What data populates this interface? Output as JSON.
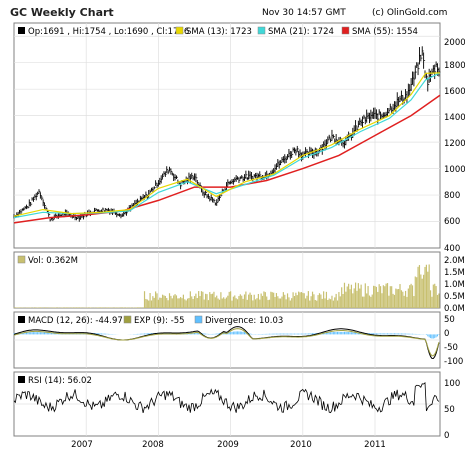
{
  "header": {
    "title": "GC Weekly Chart",
    "timestamp": "Nov 30 14:57 GMT",
    "copyright": "(c) OlinGold.com"
  },
  "colors": {
    "price_bars": "#000000",
    "sma13": "#e8d800",
    "sma21": "#40d8d8",
    "sma55": "#e02020",
    "volume": "#c8c070",
    "macd_line": "#000000",
    "exp_line": "#a0a040",
    "divergence": "#60c0ff",
    "rsi_line": "#000000",
    "grid": "#e0e0e0",
    "panel_border": "#808080"
  },
  "legends": {
    "price": {
      "ohlc": "Op:1691 , Hi:1754 , Lo:1690 , Cl:1746",
      "sma13": "SMA (13): 1723",
      "sma21": "SMA (21): 1724",
      "sma55": "SMA (55): 1554"
    },
    "volume": {
      "vol": "Vol: 0.362M"
    },
    "macd": {
      "macd": "MACD (12, 26): -44.97",
      "exp": "EXP (9): -55",
      "divergence": "Divergence: 10.03"
    },
    "rsi": {
      "rsi": "RSI (14): 56.02"
    }
  },
  "chart_data": [
    {
      "type": "line",
      "panel": "price",
      "y_ticks": [
        "400",
        "600",
        "800",
        "1000",
        "1200",
        "1400",
        "1600",
        "1800",
        "2000"
      ],
      "ylim": [
        400,
        2100
      ],
      "x_ticks": [
        "2007",
        "2008",
        "2009",
        "2010",
        "2011"
      ],
      "price_path": [
        [
          2006.0,
          640
        ],
        [
          2006.2,
          720
        ],
        [
          2006.35,
          830
        ],
        [
          2006.5,
          620
        ],
        [
          2006.7,
          660
        ],
        [
          2006.9,
          630
        ],
        [
          2007.1,
          680
        ],
        [
          2007.3,
          690
        ],
        [
          2007.5,
          650
        ],
        [
          2007.7,
          740
        ],
        [
          2007.85,
          800
        ],
        [
          2008.0,
          900
        ],
        [
          2008.15,
          1000
        ],
        [
          2008.3,
          880
        ],
        [
          2008.5,
          950
        ],
        [
          2008.6,
          830
        ],
        [
          2008.8,
          740
        ],
        [
          2008.95,
          880
        ],
        [
          2009.1,
          930
        ],
        [
          2009.3,
          940
        ],
        [
          2009.5,
          950
        ],
        [
          2009.7,
          1050
        ],
        [
          2009.9,
          1150
        ],
        [
          2010.0,
          1100
        ],
        [
          2010.2,
          1130
        ],
        [
          2010.4,
          1240
        ],
        [
          2010.6,
          1200
        ],
        [
          2010.8,
          1350
        ],
        [
          2010.95,
          1400
        ],
        [
          2011.1,
          1400
        ],
        [
          2011.3,
          1500
        ],
        [
          2011.45,
          1560
        ],
        [
          2011.55,
          1700
        ],
        [
          2011.65,
          1880
        ],
        [
          2011.72,
          1650
        ],
        [
          2011.85,
          1780
        ],
        [
          2011.9,
          1746
        ]
      ],
      "sma13": [
        [
          2006.0,
          640
        ],
        [
          2006.4,
          690
        ],
        [
          2006.8,
          660
        ],
        [
          2007.2,
          670
        ],
        [
          2007.6,
          690
        ],
        [
          2008.0,
          850
        ],
        [
          2008.4,
          920
        ],
        [
          2008.8,
          790
        ],
        [
          2009.2,
          900
        ],
        [
          2009.6,
          960
        ],
        [
          2010.0,
          1100
        ],
        [
          2010.4,
          1180
        ],
        [
          2010.8,
          1300
        ],
        [
          2011.2,
          1400
        ],
        [
          2011.5,
          1560
        ],
        [
          2011.7,
          1720
        ],
        [
          2011.9,
          1723
        ]
      ],
      "sma21": [
        [
          2006.0,
          630
        ],
        [
          2006.4,
          670
        ],
        [
          2006.8,
          660
        ],
        [
          2007.2,
          665
        ],
        [
          2007.6,
          680
        ],
        [
          2008.0,
          820
        ],
        [
          2008.4,
          900
        ],
        [
          2008.8,
          810
        ],
        [
          2009.2,
          880
        ],
        [
          2009.6,
          950
        ],
        [
          2010.0,
          1080
        ],
        [
          2010.4,
          1160
        ],
        [
          2010.8,
          1280
        ],
        [
          2011.2,
          1380
        ],
        [
          2011.5,
          1520
        ],
        [
          2011.7,
          1670
        ],
        [
          2011.9,
          1724
        ]
      ],
      "sma55": [
        [
          2006.0,
          590
        ],
        [
          2006.5,
          630
        ],
        [
          2007.0,
          650
        ],
        [
          2007.5,
          680
        ],
        [
          2008.0,
          760
        ],
        [
          2008.5,
          860
        ],
        [
          2009.0,
          860
        ],
        [
          2009.5,
          910
        ],
        [
          2010.0,
          1000
        ],
        [
          2010.5,
          1100
        ],
        [
          2011.0,
          1250
        ],
        [
          2011.5,
          1400
        ],
        [
          2011.9,
          1554
        ]
      ]
    },
    {
      "type": "bar",
      "panel": "volume",
      "y_ticks": [
        "0.0M",
        "0.5M",
        "1.0M",
        "1.5M",
        "2.0M"
      ],
      "ylim": [
        0,
        2.3
      ]
    },
    {
      "type": "line",
      "panel": "macd",
      "y_ticks": [
        "50",
        "0",
        "-50",
        "-100"
      ],
      "ylim": [
        -120,
        80
      ]
    },
    {
      "type": "line",
      "panel": "rsi",
      "y_ticks": [
        "100",
        "50",
        "0"
      ],
      "ylim": [
        0,
        100
      ]
    }
  ]
}
